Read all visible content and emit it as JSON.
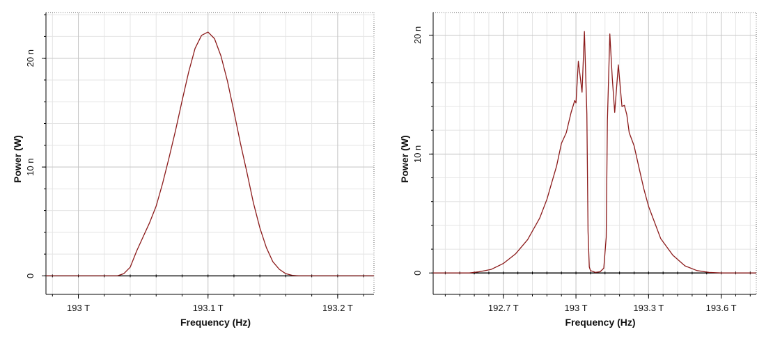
{
  "chart_data": [
    {
      "type": "line",
      "xlabel": "Frequency (Hz)",
      "ylabel": "Power (W)",
      "xlim": [
        192.975,
        193.228
      ],
      "ylim": [
        -1.7,
        24.2
      ],
      "x_ticks": [
        193.0,
        193.1,
        193.2
      ],
      "x_tick_labels": [
        "193 T",
        "193.1 T",
        "193.2 T"
      ],
      "y_ticks": [
        0,
        10,
        20
      ],
      "y_tick_labels": [
        "0",
        "10 n",
        "20 n"
      ],
      "grid": true,
      "line_color": "#8b1a1a",
      "series": [
        {
          "x": [
            192.975,
            193.03,
            193.035,
            193.04,
            193.045,
            193.05,
            193.055,
            193.06,
            193.065,
            193.07,
            193.075,
            193.08,
            193.085,
            193.09,
            193.095,
            193.1,
            193.105,
            193.11,
            193.115,
            193.12,
            193.125,
            193.13,
            193.135,
            193.14,
            193.145,
            193.15,
            193.155,
            193.16,
            193.165,
            193.17,
            193.228
          ],
          "y": [
            0,
            0,
            0.2,
            0.8,
            2.3,
            3.6,
            4.9,
            6.4,
            8.5,
            10.9,
            13.4,
            16.1,
            18.7,
            20.9,
            22.1,
            22.4,
            21.8,
            20.2,
            17.9,
            15.1,
            12.2,
            9.5,
            6.7,
            4.4,
            2.6,
            1.3,
            0.6,
            0.2,
            0.05,
            0,
            0
          ]
        }
      ]
    },
    {
      "type": "line",
      "xlabel": "Frequency (Hz)",
      "ylabel": "Power (W)",
      "xlim": [
        192.41,
        193.745
      ],
      "ylim": [
        -1.8,
        21.9
      ],
      "x_ticks": [
        192.7,
        193.0,
        193.3,
        193.6
      ],
      "x_tick_labels": [
        "192.7 T",
        "193 T",
        "193.3 T",
        "193.6 T"
      ],
      "y_ticks": [
        0,
        10,
        20
      ],
      "y_tick_labels": [
        "0",
        "10 n",
        "20 n"
      ],
      "grid": true,
      "line_color": "#8b1a1a",
      "series": [
        {
          "x": [
            192.41,
            192.56,
            192.6,
            192.65,
            192.7,
            192.75,
            192.8,
            192.85,
            192.88,
            192.9,
            192.92,
            192.94,
            192.96,
            192.98,
            192.995,
            193.0,
            193.01,
            193.025,
            193.035,
            193.045,
            193.05,
            193.055,
            193.06,
            193.08,
            193.1,
            193.115,
            193.125,
            193.13,
            193.14,
            193.15,
            193.16,
            193.175,
            193.19,
            193.2,
            193.21,
            193.22,
            193.24,
            193.26,
            193.28,
            193.3,
            193.35,
            193.4,
            193.45,
            193.5,
            193.55,
            193.6,
            193.65,
            193.745
          ],
          "y": [
            0,
            0,
            0.1,
            0.3,
            0.8,
            1.6,
            2.8,
            4.6,
            6.2,
            7.6,
            9.0,
            10.9,
            11.8,
            13.5,
            14.5,
            14.3,
            17.8,
            15.2,
            20.3,
            13.4,
            3.5,
            0.5,
            0.2,
            0.05,
            0.1,
            0.4,
            3.0,
            12.8,
            20.1,
            16.4,
            13.5,
            17.5,
            14.0,
            14.1,
            13.3,
            11.8,
            10.7,
            8.9,
            7.1,
            5.6,
            2.9,
            1.5,
            0.6,
            0.2,
            0.05,
            0,
            0,
            0
          ]
        }
      ]
    }
  ]
}
